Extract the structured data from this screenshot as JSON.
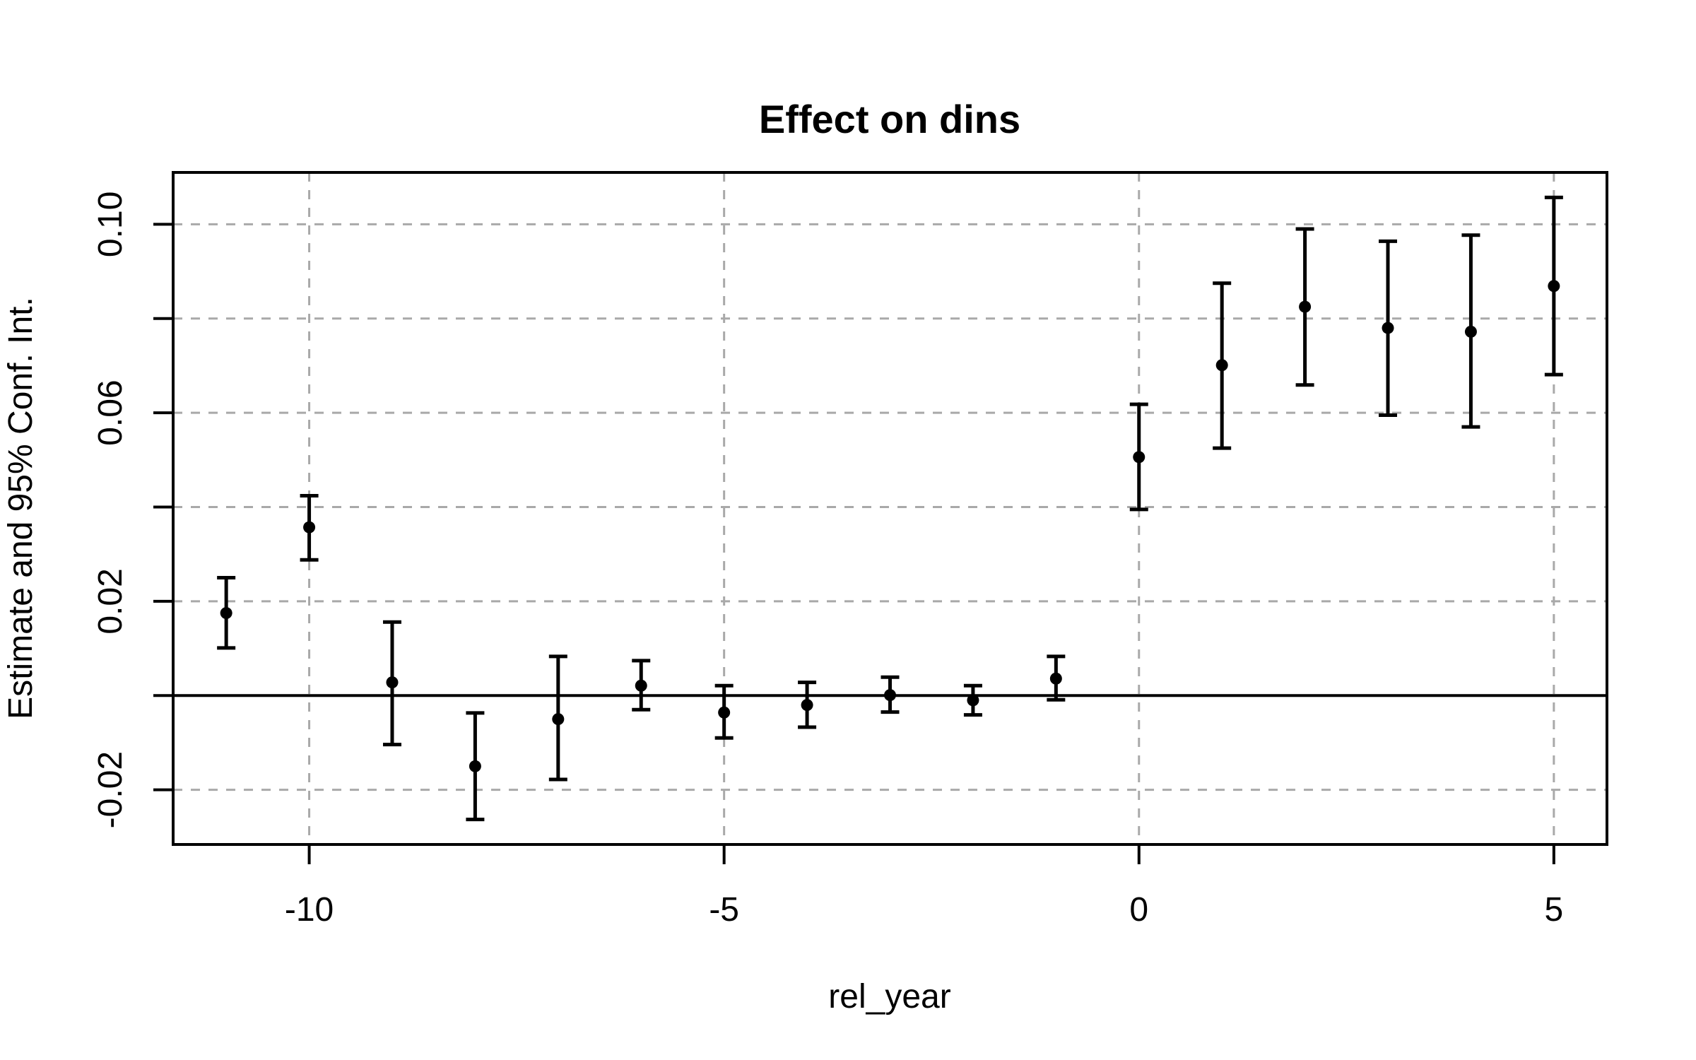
{
  "title": "Effect on dins",
  "chart_data": {
    "type": "scatter",
    "subtype": "event-study-errorbar",
    "title": "Effect on dins",
    "xlabel": "rel_year",
    "ylabel": "Estimate and 95% Conf. Int.",
    "x": [
      -11,
      -10,
      -9,
      -8,
      -7,
      -6,
      -5,
      -4,
      -3,
      -2,
      -1,
      0,
      1,
      2,
      3,
      4,
      5
    ],
    "series": [
      {
        "name": "estimate",
        "values": [
          0.0175,
          0.0357,
          0.0028,
          -0.015,
          -0.005,
          0.0021,
          -0.0036,
          -0.002,
          0.0001,
          -0.001,
          0.0036,
          0.0506,
          0.0701,
          0.0825,
          0.078,
          0.0772,
          0.0869
        ]
      },
      {
        "name": "ci_lower",
        "values": [
          0.0101,
          0.0288,
          -0.0104,
          -0.0263,
          -0.0178,
          -0.003,
          -0.009,
          -0.0067,
          -0.0035,
          -0.0041,
          -0.0009,
          0.0395,
          0.0525,
          0.0659,
          0.0595,
          0.057,
          0.0681
        ]
      },
      {
        "name": "ci_upper",
        "values": [
          0.025,
          0.0424,
          0.0156,
          -0.0037,
          0.0083,
          0.0074,
          0.0021,
          0.0028,
          0.0039,
          0.0021,
          0.0083,
          0.0618,
          0.0875,
          0.099,
          0.0964,
          0.0977,
          0.1057
        ]
      }
    ],
    "xlim": [
      -11.64,
      5.64
    ],
    "ylim": [
      -0.0316,
      0.111
    ],
    "xticks": {
      "values": [
        -10,
        -5,
        0,
        5
      ],
      "labels": [
        "-10",
        "-5",
        "0",
        "5"
      ]
    },
    "yticks": {
      "values": [
        -0.02,
        0.0,
        0.02,
        0.04,
        0.06,
        0.08,
        0.1
      ],
      "labels": [
        "-0.02",
        "",
        "0.02",
        "",
        "0.06",
        "",
        "0.10"
      ]
    },
    "grid": {
      "show": true,
      "style": "dashed"
    },
    "zero_line": 0,
    "legend": null,
    "colors": {
      "point": "#000000",
      "error_bar": "#000000",
      "gridline": "#a9a9a9",
      "axis": "#000000",
      "zero_line": "#000000",
      "background": "#ffffff"
    }
  }
}
